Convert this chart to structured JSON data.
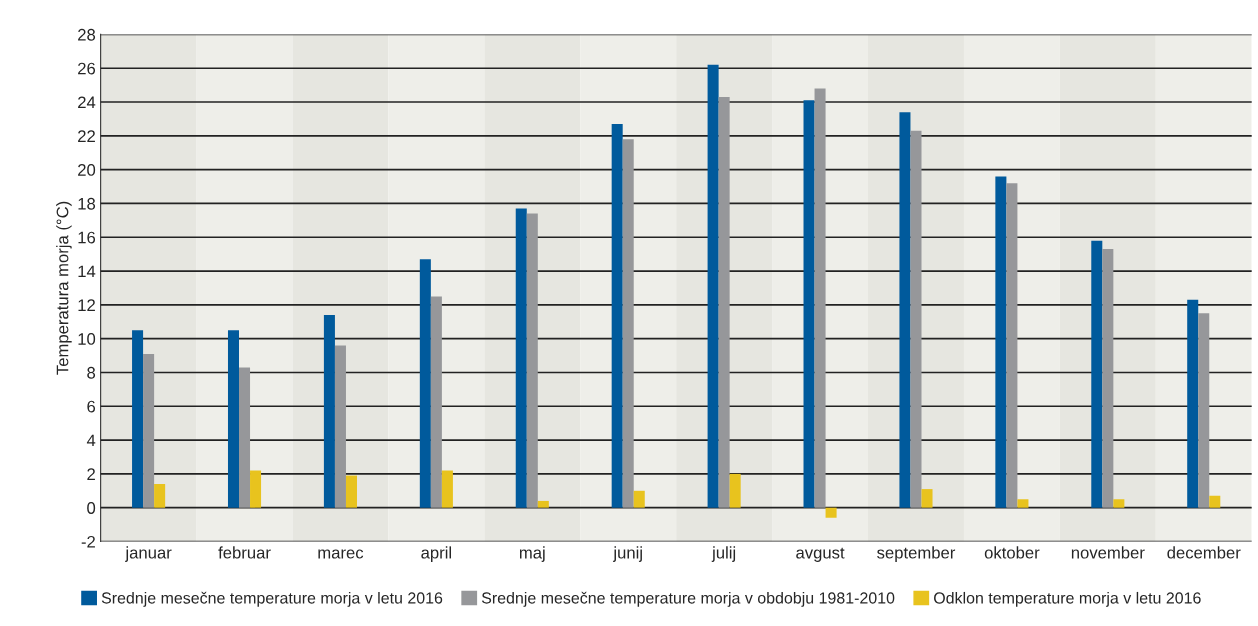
{
  "chart_data": {
    "type": "bar",
    "ylabel": "Temperatura morja (°C)",
    "categories": [
      "januar",
      "februar",
      "marec",
      "april",
      "maj",
      "junij",
      "julij",
      "avgust",
      "september",
      "oktober",
      "november",
      "december"
    ],
    "series": [
      {
        "name": "Srednje mesečne temperature morja v letu 2016",
        "color": "#005a9c",
        "values": [
          10.5,
          10.5,
          11.4,
          14.7,
          17.7,
          22.7,
          26.2,
          24.1,
          23.4,
          19.6,
          15.8,
          12.3
        ]
      },
      {
        "name": "Srednje mesečne temperature morja v obdobju 1981-2010",
        "color": "#96979a",
        "values": [
          9.1,
          8.3,
          9.6,
          12.5,
          17.4,
          21.8,
          24.3,
          24.8,
          22.3,
          19.2,
          15.3,
          11.5
        ]
      },
      {
        "name": "Odklon temperature morja v letu 2016",
        "color": "#e8c31e",
        "values": [
          1.4,
          2.2,
          1.9,
          2.2,
          0.4,
          1.0,
          2.0,
          -0.6,
          1.1,
          0.5,
          0.5,
          0.7
        ]
      }
    ],
    "ylim": [
      -2,
      28
    ],
    "yticks": [
      -2,
      0,
      2,
      4,
      6,
      8,
      10,
      12,
      14,
      16,
      18,
      20,
      22,
      24,
      26,
      28
    ],
    "grid": "y",
    "legend": "bottom"
  }
}
